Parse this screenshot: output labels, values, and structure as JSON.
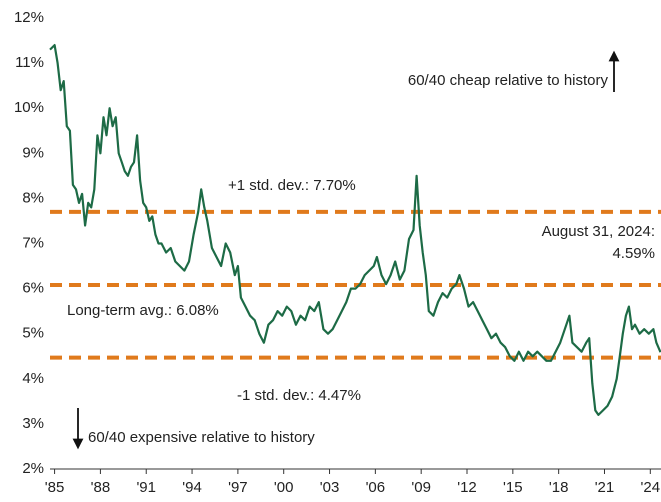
{
  "chart_data": {
    "type": "line",
    "x": [
      1984.7,
      1985.0,
      1985.2,
      1985.4,
      1985.6,
      1985.8,
      1986.0,
      1986.2,
      1986.4,
      1986.6,
      1986.8,
      1987.0,
      1987.2,
      1987.4,
      1987.6,
      1987.8,
      1988.0,
      1988.2,
      1988.4,
      1988.6,
      1988.8,
      1989.0,
      1989.2,
      1989.4,
      1989.6,
      1989.8,
      1990.0,
      1990.2,
      1990.4,
      1990.6,
      1990.8,
      1991.0,
      1991.2,
      1991.4,
      1991.6,
      1991.8,
      1992.0,
      1992.3,
      1992.6,
      1992.9,
      1993.2,
      1993.5,
      1993.8,
      1994.1,
      1994.4,
      1994.6,
      1994.8,
      1995.0,
      1995.3,
      1995.6,
      1995.9,
      1996.2,
      1996.5,
      1996.8,
      1997.0,
      1997.2,
      1997.5,
      1997.8,
      1998.1,
      1998.4,
      1998.7,
      1999.0,
      1999.3,
      1999.6,
      1999.9,
      2000.2,
      2000.5,
      2000.8,
      2001.1,
      2001.4,
      2001.7,
      2002.0,
      2002.3,
      2002.6,
      2002.9,
      2003.2,
      2003.5,
      2003.8,
      2004.1,
      2004.4,
      2004.7,
      2005.0,
      2005.3,
      2005.6,
      2005.9,
      2006.1,
      2006.4,
      2006.7,
      2007.0,
      2007.3,
      2007.6,
      2007.9,
      2008.2,
      2008.5,
      2008.7,
      2008.9,
      2009.1,
      2009.3,
      2009.5,
      2009.8,
      2010.1,
      2010.4,
      2010.7,
      2011.0,
      2011.3,
      2011.5,
      2011.8,
      2012.1,
      2012.4,
      2012.7,
      2013.0,
      2013.3,
      2013.6,
      2013.9,
      2014.2,
      2014.5,
      2014.8,
      2015.1,
      2015.4,
      2015.7,
      2016.0,
      2016.3,
      2016.6,
      2016.9,
      2017.2,
      2017.5,
      2017.8,
      2018.1,
      2018.4,
      2018.7,
      2018.9,
      2019.2,
      2019.5,
      2019.8,
      2020.0,
      2020.2,
      2020.4,
      2020.6,
      2020.9,
      2021.2,
      2021.5,
      2021.8,
      2022.0,
      2022.2,
      2022.4,
      2022.6,
      2022.8,
      2023.0,
      2023.3,
      2023.6,
      2023.9,
      2024.2,
      2024.4,
      2024.67
    ],
    "series": [
      {
        "color": "#1d6b46",
        "values": [
          11.3,
          11.4,
          11.0,
          10.4,
          10.6,
          9.6,
          9.5,
          8.3,
          8.2,
          7.9,
          8.1,
          7.4,
          7.9,
          7.8,
          8.2,
          9.4,
          9.0,
          9.8,
          9.4,
          10.0,
          9.6,
          9.8,
          9.0,
          8.8,
          8.6,
          8.5,
          8.7,
          8.8,
          9.4,
          8.4,
          7.9,
          7.8,
          7.5,
          7.6,
          7.2,
          7.0,
          7.0,
          6.8,
          6.9,
          6.6,
          6.5,
          6.4,
          6.6,
          7.2,
          7.7,
          8.2,
          7.8,
          7.5,
          6.9,
          6.7,
          6.5,
          7.0,
          6.8,
          6.3,
          6.5,
          5.8,
          5.6,
          5.4,
          5.3,
          5.0,
          4.8,
          5.2,
          5.3,
          5.5,
          5.4,
          5.6,
          5.5,
          5.2,
          5.4,
          5.3,
          5.6,
          5.5,
          5.7,
          5.1,
          5.0,
          5.1,
          5.3,
          5.5,
          5.7,
          6.0,
          6.0,
          6.1,
          6.3,
          6.4,
          6.5,
          6.7,
          6.3,
          6.1,
          6.3,
          6.6,
          6.2,
          6.4,
          7.1,
          7.3,
          8.5,
          7.4,
          6.8,
          6.3,
          5.5,
          5.4,
          5.7,
          5.9,
          5.8,
          6.0,
          6.1,
          6.3,
          6.0,
          5.6,
          5.7,
          5.5,
          5.3,
          5.1,
          4.9,
          5.0,
          4.8,
          4.7,
          4.5,
          4.4,
          4.6,
          4.4,
          4.6,
          4.5,
          4.6,
          4.5,
          4.4,
          4.4,
          4.6,
          4.8,
          5.1,
          5.4,
          4.8,
          4.7,
          4.6,
          4.8,
          4.9,
          3.9,
          3.3,
          3.2,
          3.3,
          3.4,
          3.6,
          4.0,
          4.5,
          5.0,
          5.4,
          5.6,
          5.1,
          5.2,
          5.0,
          5.1,
          5.0,
          5.1,
          4.8,
          4.59
        ]
      }
    ],
    "reference_lines": [
      {
        "value": 7.7,
        "label": "+1 std. dev.: 7.70%",
        "color": "#e07a1c"
      },
      {
        "value": 6.08,
        "label": "Long-term avg.: 6.08%",
        "color": "#e07a1c"
      },
      {
        "value": 4.47,
        "label": "-1 std. dev.: 4.47%",
        "color": "#e07a1c"
      }
    ],
    "annotations": [
      {
        "text": "60/40 cheap relative to history"
      },
      {
        "text": "60/40 expensive relative to history"
      },
      {
        "text": [
          "August 31, 2024:",
          "4.59%"
        ]
      }
    ],
    "xlim": [
      1984.7,
      2024.7
    ],
    "xticks": [
      {
        "value": 1985,
        "label": "'85"
      },
      {
        "value": 1988,
        "label": "'88"
      },
      {
        "value": 1991,
        "label": "'91"
      },
      {
        "value": 1994,
        "label": "'94"
      },
      {
        "value": 1997,
        "label": "'97"
      },
      {
        "value": 2000,
        "label": "'00"
      },
      {
        "value": 2003,
        "label": "'03"
      },
      {
        "value": 2006,
        "label": "'06"
      },
      {
        "value": 2009,
        "label": "'09"
      },
      {
        "value": 2012,
        "label": "'12"
      },
      {
        "value": 2015,
        "label": "'15"
      },
      {
        "value": 2018,
        "label": "'18"
      },
      {
        "value": 2021,
        "label": "'21"
      },
      {
        "value": 2024,
        "label": "'24"
      }
    ],
    "ylim": [
      2,
      12
    ],
    "yticks": [
      {
        "value": 2,
        "label": "2%"
      },
      {
        "value": 3,
        "label": "3%"
      },
      {
        "value": 4,
        "label": "4%"
      },
      {
        "value": 5,
        "label": "5%"
      },
      {
        "value": 6,
        "label": "6%"
      },
      {
        "value": 7,
        "label": "7%"
      },
      {
        "value": 8,
        "label": "8%"
      },
      {
        "value": 9,
        "label": "9%"
      },
      {
        "value": 10,
        "label": "10%"
      },
      {
        "value": 11,
        "label": "11%"
      },
      {
        "value": 12,
        "label": "12%"
      }
    ]
  }
}
